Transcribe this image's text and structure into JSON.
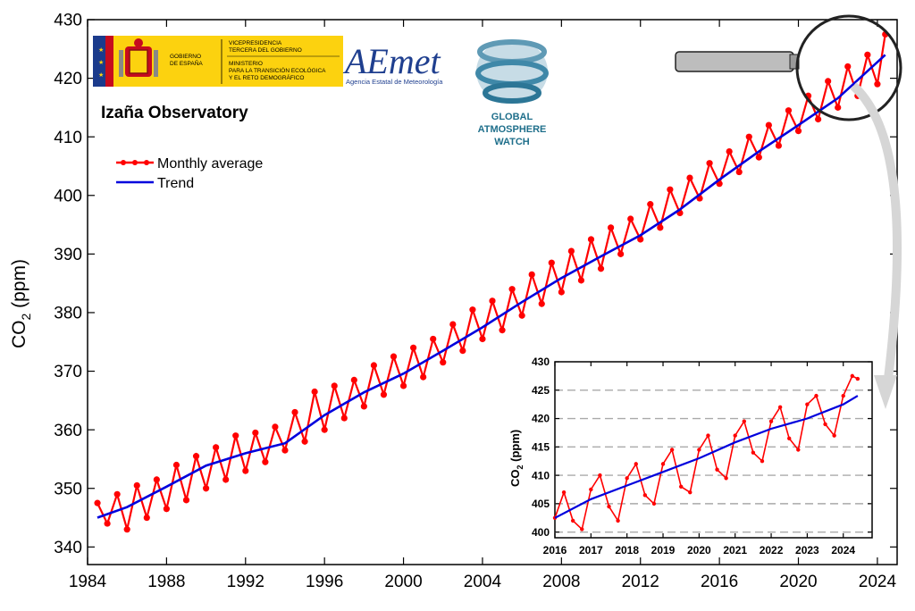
{
  "chart_data": {
    "type": "line",
    "title": "Izaña Observatory",
    "ylabel": "CO2 (ppm)",
    "xlabel": "",
    "xlim": [
      1984,
      2025
    ],
    "ylim": [
      337,
      430
    ],
    "x_ticks": [
      1984,
      1988,
      1992,
      1996,
      2000,
      2004,
      2008,
      2012,
      2016,
      2020,
      2024
    ],
    "y_ticks": [
      340,
      350,
      360,
      370,
      380,
      390,
      400,
      410,
      420,
      430
    ],
    "legend": {
      "placement": "top-left",
      "entries": [
        "Monthly average",
        "Trend"
      ]
    },
    "series": [
      {
        "name": "Monthly average",
        "color": "#ff0000",
        "marker": "circle",
        "description_points": "seasonal cycle amplitude ~6 ppm around trend",
        "x": [
          1984.5,
          1985.0,
          1985.5,
          1986.0,
          1986.5,
          1987.0,
          1987.5,
          1988.0,
          1988.5,
          1989.0,
          1989.5,
          1990.0,
          1990.5,
          1991.0,
          1991.5,
          1992.0,
          1992.5,
          1993.0,
          1993.5,
          1994.0,
          1994.5,
          1995.0,
          1995.5,
          1996.0,
          1996.5,
          1997.0,
          1997.5,
          1998.0,
          1998.5,
          1999.0,
          1999.5,
          2000.0,
          2000.5,
          2001.0,
          2001.5,
          2002.0,
          2002.5,
          2003.0,
          2003.5,
          2004.0,
          2004.5,
          2005.0,
          2005.5,
          2006.0,
          2006.5,
          2007.0,
          2007.5,
          2008.0,
          2008.5,
          2009.0,
          2009.5,
          2010.0,
          2010.5,
          2011.0,
          2011.5,
          2012.0,
          2012.5,
          2013.0,
          2013.5,
          2014.0,
          2014.5,
          2015.0,
          2015.5,
          2016.0,
          2016.5,
          2017.0,
          2017.5,
          2018.0,
          2018.5,
          2019.0,
          2019.5,
          2020.0,
          2020.5,
          2021.0,
          2021.5,
          2022.0,
          2022.5,
          2023.0,
          2023.5,
          2024.0,
          2024.4
        ],
        "y": [
          347.5,
          344.0,
          349.0,
          343.0,
          350.5,
          345.0,
          351.5,
          346.5,
          354.0,
          348.0,
          355.5,
          350.0,
          357.0,
          351.5,
          359.0,
          353.0,
          359.5,
          354.5,
          360.5,
          356.5,
          363.0,
          358.0,
          366.5,
          360.0,
          367.5,
          362.0,
          368.5,
          364.0,
          371.0,
          366.0,
          372.5,
          367.5,
          374.0,
          369.0,
          375.5,
          371.5,
          378.0,
          373.5,
          380.5,
          375.5,
          382.0,
          377.0,
          384.0,
          379.5,
          386.5,
          381.5,
          388.5,
          383.5,
          390.5,
          385.5,
          392.5,
          387.5,
          394.5,
          390.0,
          396.0,
          392.5,
          398.5,
          394.5,
          401.0,
          397.0,
          403.0,
          399.5,
          405.5,
          402.0,
          407.5,
          404.0,
          410.0,
          406.5,
          412.0,
          408.5,
          414.5,
          411.0,
          417.0,
          413.0,
          419.5,
          415.0,
          422.0,
          417.0,
          424.0,
          419.0,
          427.5
        ]
      },
      {
        "name": "Trend",
        "color": "#0000dd",
        "x": [
          1984.5,
          1986,
          1988,
          1990,
          1992,
          1994,
          1996,
          1998,
          2000,
          2002,
          2004,
          2006,
          2008,
          2010,
          2012,
          2014,
          2016,
          2018,
          2020,
          2022,
          2024.4
        ],
        "y": [
          345.0,
          346.8,
          350.3,
          353.9,
          356.0,
          357.7,
          362.5,
          366.4,
          369.6,
          373.5,
          377.5,
          381.8,
          385.9,
          389.6,
          393.2,
          397.6,
          402.7,
          407.5,
          412.0,
          416.6,
          424.0
        ]
      }
    ],
    "inset": {
      "type": "line",
      "ylabel": "CO2 (ppm)",
      "xlim": [
        2016,
        2024.8
      ],
      "ylim": [
        399,
        430
      ],
      "x_ticks": [
        2016,
        2017,
        2018,
        2019,
        2020,
        2021,
        2022,
        2023,
        2024
      ],
      "y_ticks": [
        400,
        405,
        410,
        415,
        420,
        425,
        430
      ],
      "grid": true,
      "series": [
        {
          "name": "Monthly average",
          "color": "#ff0000",
          "x": [
            2016.0,
            2016.25,
            2016.5,
            2016.75,
            2017.0,
            2017.25,
            2017.5,
            2017.75,
            2018.0,
            2018.25,
            2018.5,
            2018.75,
            2019.0,
            2019.25,
            2019.5,
            2019.75,
            2020.0,
            2020.25,
            2020.5,
            2020.75,
            2021.0,
            2021.25,
            2021.5,
            2021.75,
            2022.0,
            2022.25,
            2022.5,
            2022.75,
            2023.0,
            2023.25,
            2023.5,
            2023.75,
            2024.0,
            2024.25,
            2024.4
          ],
          "y": [
            402.5,
            407.0,
            402.0,
            400.5,
            407.5,
            410.0,
            404.5,
            402.0,
            409.5,
            412.0,
            406.5,
            405.0,
            412.0,
            414.5,
            408.0,
            407.0,
            414.5,
            417.0,
            411.0,
            409.5,
            417.0,
            419.5,
            414.0,
            412.5,
            419.5,
            422.0,
            416.5,
            414.5,
            422.5,
            424.0,
            419.0,
            417.0,
            424.0,
            427.5,
            427.0
          ]
        },
        {
          "name": "Trend",
          "color": "#0000dd",
          "x": [
            2016.0,
            2017,
            2018,
            2019,
            2020,
            2021,
            2022,
            2023,
            2024,
            2024.4
          ],
          "y": [
            402.5,
            405.8,
            408.2,
            410.6,
            413.0,
            415.8,
            418.2,
            420.0,
            422.5,
            424.0
          ]
        }
      ]
    }
  },
  "logos": {
    "gov_line1": "GOBIERNO",
    "gov_line2": "DE ESPAÑA",
    "vice_line1": "VICEPRESIDENCIA",
    "vice_line2": "TERCERA DEL GOBIERNO",
    "min_line1": "MINISTERIO",
    "min_line2": "PARA LA TRANSICIÓN ECOLÓGICA",
    "min_line3": "Y EL RETO DEMOGRÁFICO",
    "aemet": "AEmet",
    "aemet_sub": "Agencia Estatal de Meteorología",
    "gaw_line1": "GLOBAL",
    "gaw_line2": "ATMOSPHERE",
    "gaw_line3": "WATCH"
  }
}
